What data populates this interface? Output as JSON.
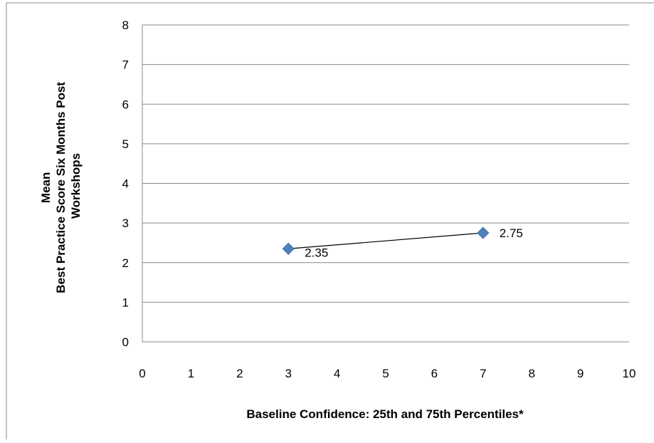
{
  "chart_data": {
    "type": "scatter",
    "title": "",
    "xlabel": "Baseline Confidence: 25th and 75th Percentiles*",
    "ylabel_lines": [
      "Mean",
      "Best Practice Score Six Months Post",
      "Workshops"
    ],
    "xlim": [
      0,
      10
    ],
    "ylim": [
      0,
      8
    ],
    "x_ticks": [
      0,
      1,
      2,
      3,
      4,
      5,
      6,
      7,
      8,
      9,
      10
    ],
    "y_ticks": [
      0,
      1,
      2,
      3,
      4,
      5,
      6,
      7,
      8
    ],
    "grid": "horizontal",
    "legend": "none",
    "series": [
      {
        "points": [
          {
            "x": 3,
            "y": 2.35,
            "label": "2.35"
          },
          {
            "x": 7,
            "y": 2.75,
            "label": "2.75"
          }
        ],
        "line": true,
        "marker": "diamond",
        "marker_color": "#4f81bd",
        "line_color": "#000000"
      }
    ]
  }
}
